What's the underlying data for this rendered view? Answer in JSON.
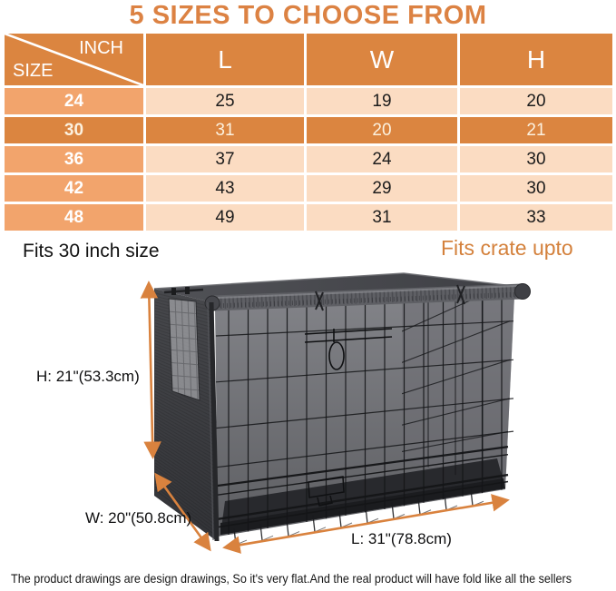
{
  "title": "5 SIZES TO CHOOSE FROM",
  "table": {
    "corner_top": "INCH",
    "corner_bottom": "SIZE",
    "columns": [
      "L",
      "W",
      "H"
    ],
    "rows": [
      {
        "size": "24",
        "l": "25",
        "w": "19",
        "h": "20"
      },
      {
        "size": "30",
        "l": "31",
        "w": "20",
        "h": "21"
      },
      {
        "size": "36",
        "l": "37",
        "w": "24",
        "h": "30"
      },
      {
        "size": "42",
        "l": "43",
        "w": "29",
        "h": "30"
      },
      {
        "size": "48",
        "l": "49",
        "w": "31",
        "h": "33"
      }
    ],
    "highlighted_row": "30"
  },
  "labels": {
    "fits_left": "Fits 30 inch size",
    "fits_right": "Fits crate upto",
    "dim_h": "H: 21\"(53.3cm)",
    "dim_w": "W: 20\"(50.8cm)",
    "dim_l": "L: 31\"(78.8cm)"
  },
  "caption": "The product drawings are design drawings, So it's very flat.And the real product will have fold like all the sellers",
  "colors": {
    "accent_orange": "#DC8243",
    "header_orange": "#DB8540",
    "size_column_orange": "#F2A46C",
    "cell_peach": "#FBDCC2",
    "arrow_orange": "#D9823E"
  }
}
